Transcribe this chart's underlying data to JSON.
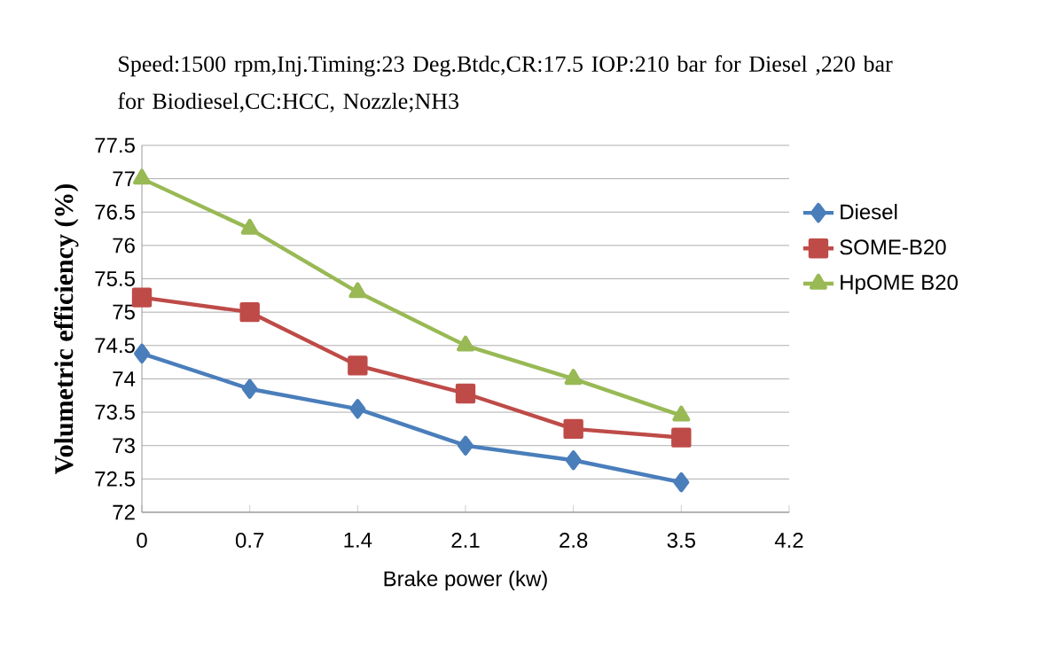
{
  "chart_data": {
    "type": "line",
    "title": "Speed:1500 rpm,Inj.Timing:23  Deg.Btdc,CR:17.5 IOP:210 bar for Diesel ,220 bar for Biodiesel,CC:HCC,  Nozzle;NH3",
    "xlabel": "Brake power (kw)",
    "ylabel": "Volumetric efficiency (%)",
    "x": [
      0,
      0.7,
      1.4,
      2.1,
      2.8,
      3.5
    ],
    "series": [
      {
        "name": "Diesel",
        "color": "#4a7ebb",
        "marker": "diamond",
        "values": [
          74.38,
          73.85,
          73.55,
          73.0,
          72.78,
          72.45
        ]
      },
      {
        "name": "SOME-B20",
        "color": "#be4b48",
        "marker": "square",
        "values": [
          75.22,
          75.0,
          74.2,
          73.78,
          73.25,
          73.12
        ]
      },
      {
        "name": "HpOME B20",
        "color": "#98b954",
        "marker": "triangle",
        "values": [
          77.0,
          76.25,
          75.3,
          74.5,
          74.0,
          73.45
        ]
      }
    ],
    "xlim": [
      0,
      4.2
    ],
    "xticks": [
      0,
      0.7,
      1.4,
      2.1,
      2.8,
      3.5,
      4.2
    ],
    "ylim": [
      72,
      77.5
    ],
    "yticks": [
      72,
      72.5,
      73,
      73.5,
      74,
      74.5,
      75,
      75.5,
      76,
      76.5,
      77,
      77.5
    ],
    "grid": "y",
    "legend": "right",
    "line_style": "solid"
  }
}
